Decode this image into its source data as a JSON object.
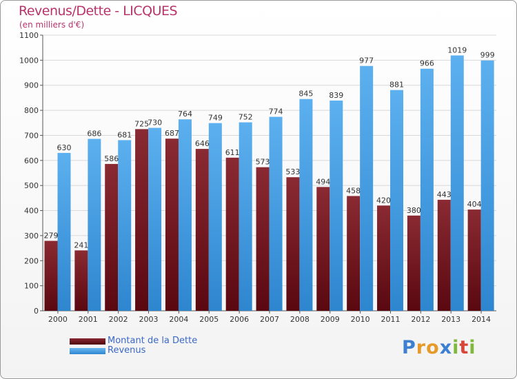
{
  "title": "Revenus/Dette - LICQUES",
  "subtitle": "(en milliers d'€)",
  "colors": {
    "dette": "#6e1219",
    "revenus": "#4aa2e4",
    "title": "#b8336a",
    "legend_text": "#3b68c9"
  },
  "legend": {
    "dette_label": "Montant de la Dette",
    "revenus_label": "Revenus"
  },
  "logo": {
    "letters": [
      "P",
      "r",
      "o",
      "x",
      "i",
      "t",
      "i"
    ]
  },
  "chart_data": {
    "type": "bar",
    "title": "Revenus/Dette - LICQUES",
    "subtitle": "(en milliers d'€)",
    "categories": [
      "2000",
      "2001",
      "2002",
      "2003",
      "2004",
      "2005",
      "2006",
      "2007",
      "2008",
      "2009",
      "2010",
      "2011",
      "2012",
      "2013",
      "2014"
    ],
    "series": [
      {
        "name": "Montant de la Dette",
        "values": [
          279,
          241,
          586,
          725,
          687,
          646,
          611,
          573,
          533,
          494,
          458,
          420,
          380,
          443,
          404
        ]
      },
      {
        "name": "Revenus",
        "values": [
          630,
          686,
          681,
          730,
          764,
          749,
          752,
          774,
          845,
          839,
          977,
          881,
          966,
          1019,
          999
        ]
      }
    ],
    "ylim": [
      0,
      1100
    ],
    "yticks": [
      0,
      100,
      200,
      300,
      400,
      500,
      600,
      700,
      800,
      900,
      1000,
      1100
    ],
    "grid": true,
    "legend_position": "bottom-left"
  }
}
